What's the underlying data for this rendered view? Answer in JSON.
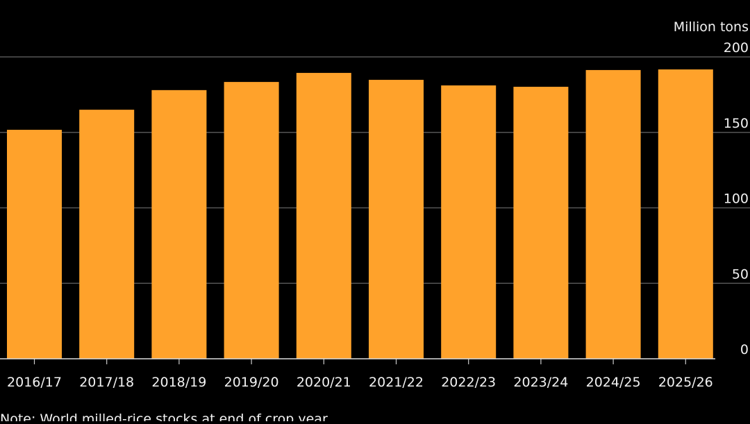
{
  "chart_data": {
    "type": "bar",
    "title": "",
    "ylabel": "Million tons",
    "xlabel": "",
    "categories": [
      "2016/17",
      "2017/18",
      "2018/19",
      "2019/20",
      "2020/21",
      "2021/22",
      "2022/23",
      "2023/24",
      "2024/25",
      "2025/26"
    ],
    "values": [
      151.7,
      165,
      178,
      183.4,
      189.4,
      184.8,
      181.1,
      180.2,
      191.3,
      191.7
    ],
    "ylim": [
      0,
      200
    ],
    "yticks": [
      0,
      50,
      100,
      150,
      200
    ],
    "grid": true,
    "axis_position": "right",
    "bar_color": "#ffa22b",
    "grid_color": "#555555",
    "background": "#000000",
    "note": "Note: World milled-rice stocks at end of crop year"
  }
}
